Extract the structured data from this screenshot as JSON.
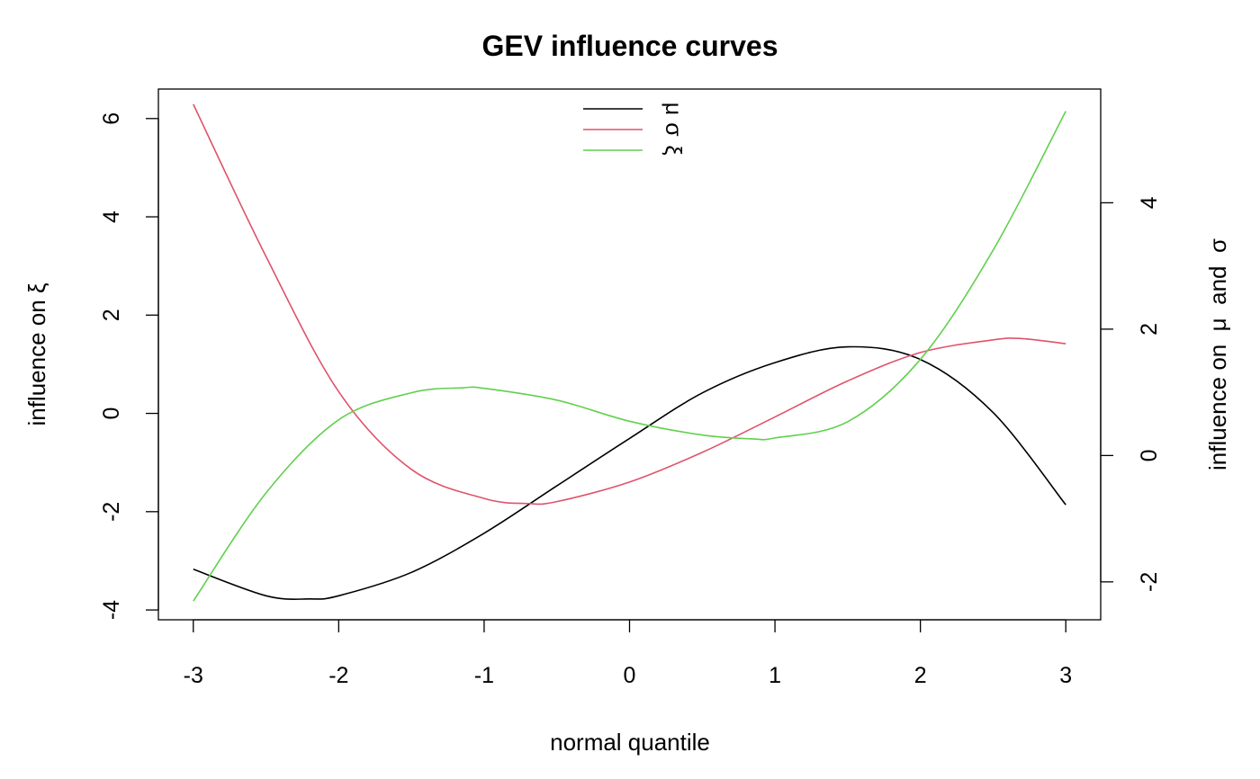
{
  "chart_data": {
    "type": "line",
    "title": "GEV influence curves",
    "xlabel": "normal quantile",
    "ylabel_left": "influence on  ξ",
    "ylabel_right": "influence on  μ  and  σ",
    "xlim": [
      -3.24,
      3.24
    ],
    "ylim_left": [
      -4.2,
      6.6
    ],
    "ylim_right": [
      -2.6,
      5.8
    ],
    "x_ticks": [
      -3,
      -2,
      -1,
      0,
      1,
      2,
      3
    ],
    "x_tick_labels": [
      "-3",
      "-2",
      "-1",
      "0",
      "1",
      "2",
      "3"
    ],
    "y_left_ticks": [
      -4,
      -2,
      0,
      2,
      4,
      6
    ],
    "y_left_tick_labels": [
      "-4",
      "-2",
      "0",
      "2",
      "4",
      "6"
    ],
    "y_right_ticks": [
      -2,
      0,
      2,
      4
    ],
    "y_right_tick_labels": [
      "-2",
      "0",
      "2",
      "4"
    ],
    "grid": false,
    "legend_position": "top-center",
    "legend": [
      "μ",
      "σ",
      "ξ"
    ],
    "series": [
      {
        "name": "μ",
        "axis": "right",
        "color": "#000000",
        "x": [
          -3.0,
          -2.5,
          -2.2,
          -2.0,
          -1.5,
          -1.0,
          -0.5,
          0.0,
          0.5,
          1.0,
          1.5,
          2.0,
          2.5,
          3.0
        ],
        "y": [
          -1.8,
          -2.22,
          -2.27,
          -2.22,
          -1.85,
          -1.23,
          -0.48,
          0.27,
          0.99,
          1.47,
          1.72,
          1.52,
          0.68,
          -0.78
        ]
      },
      {
        "name": "σ",
        "axis": "right",
        "color": "#df536b",
        "x": [
          -3.0,
          -2.5,
          -2.0,
          -1.5,
          -1.0,
          -0.7,
          -0.5,
          0.0,
          0.5,
          1.0,
          1.5,
          2.0,
          2.5,
          2.7,
          3.0
        ],
        "y": [
          5.56,
          3.15,
          1.01,
          -0.22,
          -0.68,
          -0.76,
          -0.73,
          -0.42,
          0.05,
          0.61,
          1.18,
          1.63,
          1.83,
          1.85,
          1.77
        ]
      },
      {
        "name": "ξ",
        "axis": "left",
        "color": "#61d04f",
        "x": [
          -3.0,
          -2.5,
          -2.0,
          -1.5,
          -1.15,
          -1.0,
          -0.5,
          0.0,
          0.5,
          0.85,
          1.0,
          1.5,
          2.0,
          2.5,
          3.0
        ],
        "y": [
          -3.82,
          -1.62,
          -0.13,
          0.42,
          0.52,
          0.51,
          0.27,
          -0.16,
          -0.44,
          -0.52,
          -0.5,
          -0.17,
          1.1,
          3.32,
          6.15
        ]
      }
    ]
  }
}
